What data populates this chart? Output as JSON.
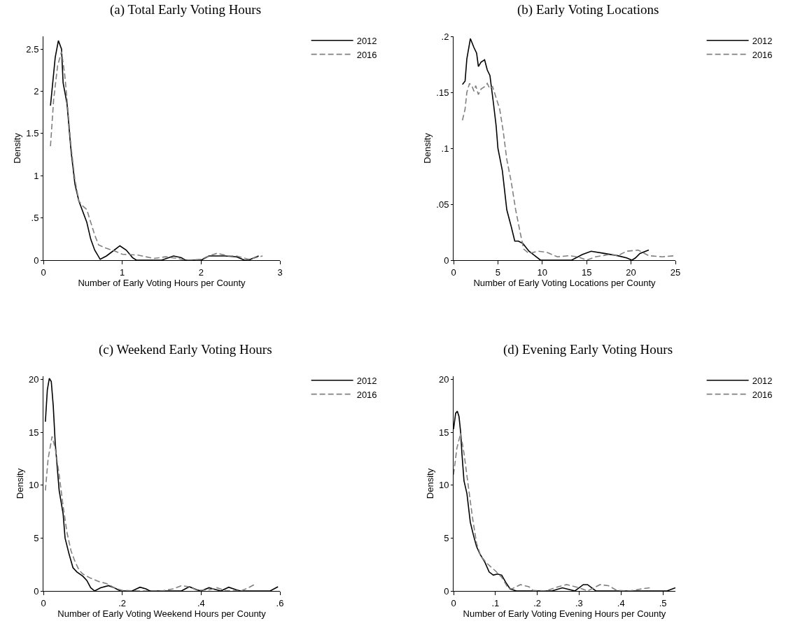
{
  "chart_data": [
    {
      "type": "line",
      "title": "(a) Total Early Voting Hours",
      "xlabel": "Number of Early Voting Hours per County",
      "ylabel": "Density",
      "legend": "top right",
      "xlim": [
        0,
        3
      ],
      "xticks": [
        0,
        1,
        2,
        3
      ],
      "ylim": [
        0,
        2.65
      ],
      "yticks": [
        0,
        {
          "value": 0.5,
          "label": ".5"
        },
        1,
        1.5,
        2,
        2.5
      ],
      "series": [
        {
          "name": "2012",
          "color": "#000000",
          "line_style": "solid",
          "x": [
            0.09,
            0.15,
            0.19,
            0.23,
            0.25,
            0.3,
            0.35,
            0.4,
            0.45,
            0.55,
            0.6,
            0.65,
            0.72,
            0.8,
            0.9,
            0.97,
            1.05,
            1.13,
            1.18,
            1.5,
            1.65,
            1.75,
            1.8,
            2.0,
            2.1,
            2.3,
            2.45,
            2.55,
            2.6,
            2.73
          ],
          "values": [
            1.83,
            2.4,
            2.6,
            2.5,
            2.1,
            1.85,
            1.3,
            0.9,
            0.7,
            0.45,
            0.25,
            0.12,
            0.01,
            0.05,
            0.12,
            0.17,
            0.12,
            0.03,
            0,
            0,
            0.05,
            0.03,
            0,
            0,
            0.05,
            0.05,
            0.04,
            0,
            0,
            0.05
          ]
        },
        {
          "name": "2016",
          "color": "#808080",
          "line_style": "dashed",
          "x": [
            0.09,
            0.13,
            0.18,
            0.23,
            0.27,
            0.3,
            0.35,
            0.4,
            0.45,
            0.5,
            0.55,
            0.6,
            0.65,
            0.7,
            0.8,
            0.9,
            1.0,
            1.2,
            1.4,
            1.55,
            1.7,
            1.8,
            2.0,
            2.1,
            2.2,
            2.35,
            2.45,
            2.6,
            2.78
          ],
          "values": [
            1.35,
            1.9,
            2.3,
            2.47,
            2.2,
            1.9,
            1.35,
            0.95,
            0.7,
            0.64,
            0.6,
            0.45,
            0.3,
            0.18,
            0.14,
            0.11,
            0.07,
            0.06,
            0.02,
            0.04,
            0.02,
            0,
            0.01,
            0.05,
            0.08,
            0.05,
            0.05,
            0.01,
            0.05
          ]
        }
      ]
    },
    {
      "type": "line",
      "title": "(b) Early Voting Locations",
      "xlabel": "Number of Early Voting Locations per County",
      "ylabel": "Density",
      "legend": "top right",
      "xlim": [
        0,
        25
      ],
      "xticks": [
        0,
        5,
        10,
        15,
        20,
        25
      ],
      "ylim": [
        0,
        0.2
      ],
      "yticks": [
        0,
        {
          "value": 0.05,
          "label": ".05"
        },
        {
          "value": 0.1,
          "label": ".1"
        },
        {
          "value": 0.15,
          "label": ".15"
        },
        {
          "value": 0.2,
          "label": ".2"
        }
      ],
      "series": [
        {
          "name": "2012",
          "color": "#000000",
          "line_style": "solid",
          "x": [
            1.0,
            1.3,
            1.5,
            1.9,
            2.3,
            2.6,
            2.8,
            3.1,
            3.5,
            3.8,
            4.1,
            4.5,
            4.8,
            5.0,
            5.5,
            6.0,
            6.5,
            6.9,
            7.3,
            7.8,
            8.5,
            9.8,
            13.3,
            14.5,
            15.5,
            17,
            18.5,
            19.5,
            20.1,
            20.5,
            21,
            22
          ],
          "values": [
            0.157,
            0.16,
            0.18,
            0.198,
            0.19,
            0.185,
            0.173,
            0.177,
            0.179,
            0.17,
            0.165,
            0.14,
            0.12,
            0.1,
            0.08,
            0.045,
            0.03,
            0.017,
            0.017,
            0.015,
            0.008,
            0,
            0,
            0.005,
            0.008,
            0.006,
            0.004,
            0.002,
            0,
            0.002,
            0.006,
            0.009
          ]
        },
        {
          "name": "2016",
          "color": "#808080",
          "line_style": "dashed",
          "x": [
            1.0,
            1.3,
            1.5,
            1.8,
            2.1,
            2.3,
            2.5,
            2.8,
            3.1,
            3.5,
            3.8,
            4.1,
            4.4,
            4.8,
            5.2,
            5.6,
            6.0,
            6.5,
            7.0,
            7.5,
            7.9,
            8.5,
            9.5,
            10.5,
            11.7,
            13,
            14,
            15,
            16,
            17.5,
            18.5,
            19.5,
            20.8,
            22,
            23.5,
            25
          ],
          "values": [
            0.125,
            0.135,
            0.15,
            0.158,
            0.155,
            0.151,
            0.156,
            0.148,
            0.153,
            0.155,
            0.158,
            0.153,
            0.155,
            0.145,
            0.135,
            0.115,
            0.09,
            0.07,
            0.045,
            0.025,
            0.01,
            0.006,
            0.008,
            0.007,
            0.003,
            0.004,
            0.003,
            0,
            0.003,
            0.005,
            0.004,
            0.008,
            0.009,
            0.004,
            0.003,
            0.004
          ]
        }
      ]
    },
    {
      "type": "line",
      "title": "(c) Weekend Early Voting Hours",
      "xlabel": "Number of Early Voting Weekend Hours per County",
      "ylabel": "Density",
      "legend": "top right",
      "xlim": [
        0,
        0.6
      ],
      "xticks": [
        0,
        {
          "value": 0.2,
          "label": ".2"
        },
        {
          "value": 0.4,
          "label": ".4"
        },
        {
          "value": 0.6,
          "label": ".6"
        }
      ],
      "ylim": [
        0,
        20.3
      ],
      "yticks": [
        0,
        5,
        10,
        15,
        20
      ],
      "series": [
        {
          "name": "2012",
          "color": "#000000",
          "line_style": "solid",
          "x": [
            0.005,
            0.01,
            0.015,
            0.02,
            0.025,
            0.03,
            0.04,
            0.05,
            0.055,
            0.065,
            0.075,
            0.085,
            0.1,
            0.11,
            0.12,
            0.13,
            0.145,
            0.165,
            0.18,
            0.195,
            0.225,
            0.245,
            0.26,
            0.27,
            0.35,
            0.37,
            0.39,
            0.4,
            0.42,
            0.44,
            0.45,
            0.47,
            0.49,
            0.5,
            0.575,
            0.595
          ],
          "values": [
            16,
            19,
            20.1,
            19.8,
            17.5,
            14,
            9.5,
            7.3,
            5,
            3.5,
            2.2,
            1.8,
            1.4,
            1.0,
            0.3,
            0,
            0.3,
            0.5,
            0.3,
            0,
            0,
            0.35,
            0.2,
            0,
            0,
            0.4,
            0.1,
            0,
            0.3,
            0.1,
            0,
            0.35,
            0.1,
            0,
            0,
            0.4
          ]
        },
        {
          "name": "2016",
          "color": "#808080",
          "line_style": "dashed",
          "x": [
            0.005,
            0.012,
            0.022,
            0.03,
            0.04,
            0.05,
            0.06,
            0.07,
            0.08,
            0.09,
            0.1,
            0.12,
            0.14,
            0.16,
            0.18,
            0.2,
            0.24,
            0.3,
            0.33,
            0.35,
            0.37,
            0.39,
            0.42,
            0.44,
            0.46,
            0.5,
            0.52,
            0.535
          ],
          "values": [
            9.5,
            12.5,
            14.6,
            13.5,
            11,
            8,
            5.5,
            3.8,
            2.8,
            2.0,
            1.6,
            1.2,
            0.9,
            0.7,
            0.3,
            0.05,
            0,
            0,
            0.2,
            0.5,
            0.4,
            0.05,
            0.1,
            0.3,
            0.05,
            0,
            0.3,
            0.6
          ]
        }
      ]
    },
    {
      "type": "line",
      "title": "(d) Evening Early Voting Hours",
      "xlabel": "Number of Early Voting Evening Hours per County",
      "ylabel": "Density",
      "legend": "top right",
      "xlim": [
        0,
        0.53
      ],
      "xticks": [
        0,
        {
          "value": 0.1,
          "label": ".1"
        },
        {
          "value": 0.2,
          "label": ".2"
        },
        {
          "value": 0.3,
          "label": ".3"
        },
        {
          "value": 0.4,
          "label": ".4"
        },
        {
          "value": 0.5,
          "label": ".5"
        }
      ],
      "ylim": [
        0,
        20.3
      ],
      "yticks": [
        0,
        5,
        10,
        15,
        20
      ],
      "series": [
        {
          "name": "2012",
          "color": "#000000",
          "line_style": "solid",
          "x": [
            0,
            0.005,
            0.009,
            0.013,
            0.017,
            0.02,
            0.025,
            0.032,
            0.04,
            0.048,
            0.055,
            0.063,
            0.075,
            0.085,
            0.095,
            0.105,
            0.115,
            0.125,
            0.135,
            0.15,
            0.235,
            0.26,
            0.28,
            0.29,
            0.31,
            0.32,
            0.34,
            0.51,
            0.53
          ],
          "values": [
            15.3,
            16.8,
            17,
            16.5,
            15,
            13,
            10.4,
            9.2,
            6.5,
            5.2,
            4.2,
            3.5,
            2.7,
            1.8,
            1.5,
            1.6,
            1.5,
            0.8,
            0.2,
            0,
            0,
            0.3,
            0.1,
            0,
            0.6,
            0.6,
            0,
            0,
            0.3
          ]
        },
        {
          "name": "2016",
          "color": "#808080",
          "line_style": "dashed",
          "x": [
            0,
            0.008,
            0.017,
            0.025,
            0.035,
            0.045,
            0.055,
            0.065,
            0.08,
            0.1,
            0.115,
            0.13,
            0.14,
            0.16,
            0.18,
            0.19,
            0.22,
            0.25,
            0.27,
            0.3,
            0.32,
            0.35,
            0.37,
            0.39,
            0.42,
            0.45,
            0.47
          ],
          "values": [
            11,
            13.5,
            14.9,
            13,
            10,
            7,
            4.5,
            3.3,
            2.6,
            1.9,
            1.3,
            0.3,
            0.2,
            0.6,
            0.4,
            0.05,
            0,
            0.4,
            0.6,
            0.3,
            0,
            0.6,
            0.5,
            0.05,
            0,
            0.2,
            0.3
          ]
        }
      ]
    }
  ]
}
